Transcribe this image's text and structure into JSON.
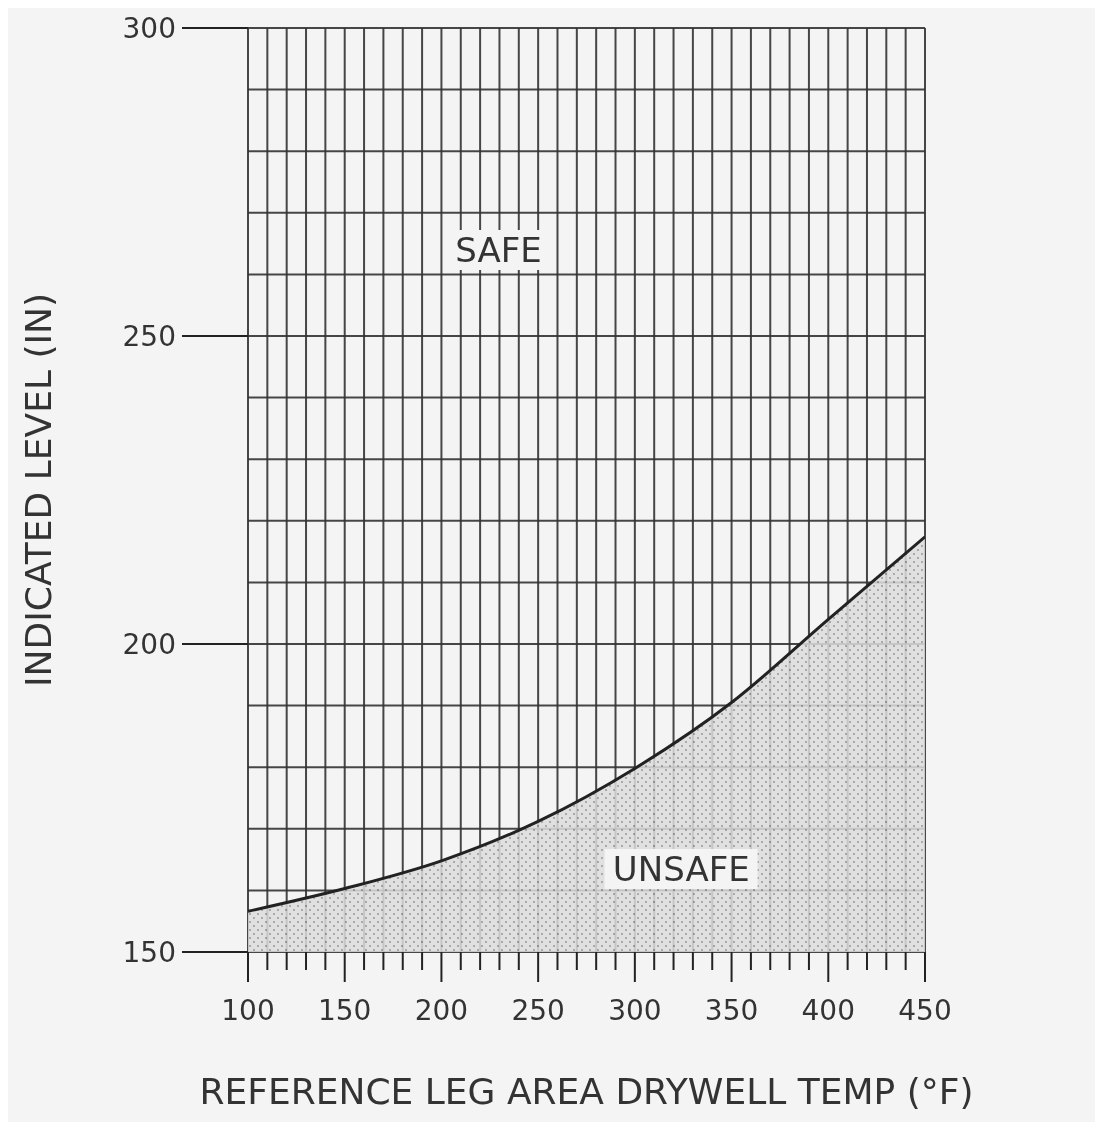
{
  "chart_data": {
    "type": "area",
    "xlabel": "REFERENCE LEG AREA DRYWELL TEMP (°F)",
    "ylabel": "INDICATED LEVEL (IN)",
    "x": [
      100,
      150,
      200,
      250,
      300,
      350,
      400,
      450
    ],
    "series": [
      {
        "color": "#222222",
        "values": [
          156.6,
          160.3,
          164.8,
          171.2,
          179.8,
          190.5,
          204,
          217.4
        ]
      }
    ],
    "xlim": [
      100,
      450
    ],
    "ylim": [
      150,
      300
    ],
    "xticks": [
      100,
      {
        "value": 110,
        "label": null
      },
      {
        "value": 120,
        "label": null
      },
      {
        "value": 130,
        "label": null
      },
      {
        "value": 140,
        "label": null
      },
      150,
      {
        "value": 160,
        "label": null
      },
      {
        "value": 170,
        "label": null
      },
      {
        "value": 180,
        "label": null
      },
      {
        "value": 190,
        "label": null
      },
      200,
      {
        "value": 210,
        "label": null
      },
      {
        "value": 220,
        "label": null
      },
      {
        "value": 230,
        "label": null
      },
      {
        "value": 240,
        "label": null
      },
      250,
      {
        "value": 260,
        "label": null
      },
      {
        "value": 270,
        "label": null
      },
      {
        "value": 280,
        "label": null
      },
      {
        "value": 290,
        "label": null
      },
      300,
      {
        "value": 310,
        "label": null
      },
      {
        "value": 320,
        "label": null
      },
      {
        "value": 330,
        "label": null
      },
      {
        "value": 340,
        "label": null
      },
      350,
      {
        "value": 360,
        "label": null
      },
      {
        "value": 370,
        "label": null
      },
      {
        "value": 380,
        "label": null
      },
      {
        "value": 390,
        "label": null
      },
      400,
      {
        "value": 410,
        "label": null
      },
      {
        "value": 420,
        "label": null
      },
      {
        "value": 430,
        "label": null
      },
      {
        "value": 440,
        "label": null
      },
      450
    ],
    "yticks": [
      150,
      {
        "value": 160,
        "label": null
      },
      {
        "value": 170,
        "label": null
      },
      {
        "value": 180,
        "label": null
      },
      {
        "value": 190,
        "label": null
      },
      200,
      {
        "value": 210,
        "label": null
      },
      {
        "value": 220,
        "label": null
      },
      {
        "value": 230,
        "label": null
      },
      {
        "value": 240,
        "label": null
      },
      250,
      {
        "value": 260,
        "label": null
      },
      {
        "value": 270,
        "label": null
      },
      {
        "value": 280,
        "label": null
      },
      {
        "value": 290,
        "label": null
      },
      300
    ],
    "grid": true,
    "annotations": [
      "SAFE",
      "UNSAFE"
    ]
  }
}
